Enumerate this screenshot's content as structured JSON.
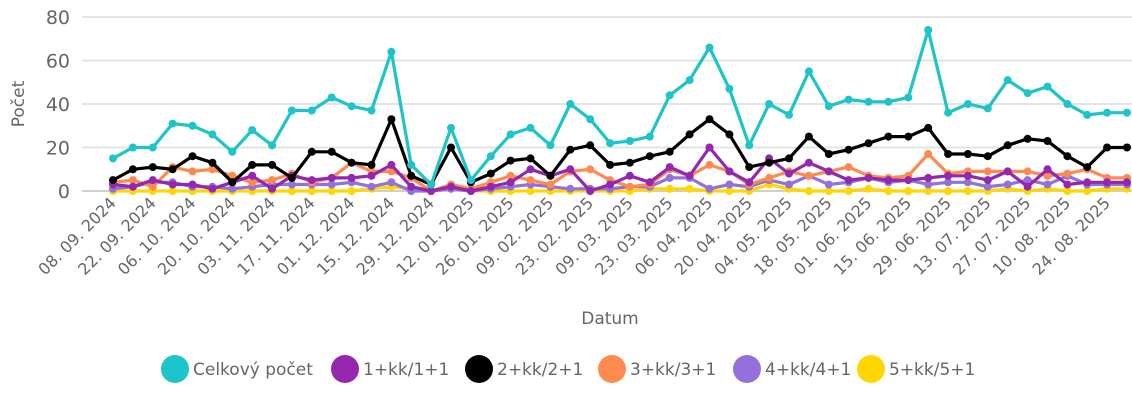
{
  "chart_data": {
    "type": "line",
    "title": "",
    "xlabel": "Datum",
    "ylabel": "Počet",
    "ylim": [
      0,
      80
    ],
    "yticks": [
      0,
      20,
      40,
      60,
      80
    ],
    "grid": true,
    "legend_position": "bottom",
    "x_tick_labels": [
      "08. 09. 2024",
      "22. 09. 2024",
      "06. 10. 2024",
      "20. 10. 2024",
      "03. 11. 2024",
      "17. 11. 2024",
      "01. 12. 2024",
      "15. 12. 2024",
      "29. 12. 2024",
      "12. 01. 2025",
      "26. 01. 2025",
      "09. 02. 2025",
      "23. 02. 2025",
      "09. 03. 2025",
      "23. 03. 2025",
      "06. 04. 2025",
      "20. 04. 2025",
      "04. 05. 2025",
      "18. 05. 2025",
      "01. 06. 2025",
      "15. 06. 2025",
      "29. 06. 2025",
      "13. 07. 2025",
      "27. 07. 2025",
      "10. 08. 2025",
      "24. 08. 2025"
    ],
    "tick_every": 2,
    "points": 52,
    "series": [
      {
        "name": "Celkový počet",
        "color": "#1DC4C9",
        "values": [
          15,
          20,
          20,
          31,
          30,
          26,
          18,
          28,
          21,
          37,
          37,
          43,
          39,
          37,
          64,
          12,
          3,
          29,
          5,
          16,
          26,
          29,
          21,
          40,
          33,
          22,
          23,
          25,
          44,
          51,
          66,
          47,
          21,
          40,
          35,
          55,
          39,
          42,
          41,
          41,
          43,
          74,
          36,
          40,
          38,
          51,
          45,
          48,
          40,
          35,
          36,
          36
        ]
      },
      {
        "name": "1+kk/1+1",
        "color": "#9526B0",
        "values": [
          3,
          2,
          5,
          3,
          3,
          1,
          4,
          7,
          1,
          7,
          5,
          6,
          6,
          7,
          12,
          2,
          0,
          2,
          0,
          2,
          4,
          10,
          7,
          10,
          0,
          3,
          7,
          4,
          11,
          7,
          20,
          9,
          4,
          15,
          8,
          13,
          9,
          5,
          6,
          5,
          5,
          6,
          7,
          7,
          5,
          9,
          2,
          10,
          3,
          4,
          4,
          4
        ]
      },
      {
        "name": "2+kk/2+1",
        "color": "#000000",
        "values": [
          5,
          10,
          11,
          10,
          16,
          13,
          4,
          12,
          12,
          6,
          18,
          18,
          13,
          12,
          33,
          7,
          3,
          20,
          4,
          8,
          14,
          15,
          7,
          19,
          21,
          12,
          13,
          16,
          18,
          26,
          33,
          26,
          11,
          13,
          15,
          25,
          17,
          19,
          22,
          25,
          25,
          29,
          17,
          17,
          16,
          21,
          24,
          23,
          16,
          11,
          20,
          20
        ]
      },
      {
        "name": "3+kk/3+1",
        "color": "#FF8A50",
        "values": [
          4,
          5,
          2,
          11,
          9,
          10,
          7,
          4,
          5,
          8,
          4,
          6,
          13,
          9,
          9,
          6,
          0,
          3,
          1,
          4,
          7,
          5,
          3,
          9,
          10,
          5,
          2,
          3,
          10,
          7,
          12,
          9,
          3,
          6,
          9,
          7,
          9,
          11,
          7,
          6,
          7,
          17,
          8,
          9,
          9,
          9,
          9,
          7,
          8,
          10,
          6,
          6
        ]
      },
      {
        "name": "4+kk/4+1",
        "color": "#9370DB",
        "values": [
          1,
          2,
          4,
          4,
          2,
          2,
          1,
          2,
          3,
          3,
          3,
          3,
          4,
          2,
          4,
          0,
          0,
          1,
          0,
          1,
          2,
          3,
          2,
          1,
          1,
          1,
          2,
          2,
          6,
          6,
          1,
          3,
          2,
          5,
          3,
          7,
          3,
          4,
          6,
          4,
          5,
          3,
          4,
          4,
          2,
          3,
          5,
          3,
          7,
          3,
          3,
          3
        ]
      },
      {
        "name": "5+kk/5+1",
        "color": "#FFD600",
        "values": [
          0,
          0,
          0,
          0,
          0,
          0,
          0,
          0,
          0,
          0,
          0,
          0,
          0,
          1,
          2,
          1,
          0,
          1,
          0,
          0,
          0,
          0,
          0,
          0,
          0,
          0,
          0,
          1,
          1,
          1,
          0,
          0,
          0,
          3,
          1,
          0,
          0,
          0,
          1,
          0,
          0,
          0,
          0,
          0,
          0,
          1,
          0,
          1,
          0,
          0,
          1,
          1
        ]
      }
    ]
  }
}
